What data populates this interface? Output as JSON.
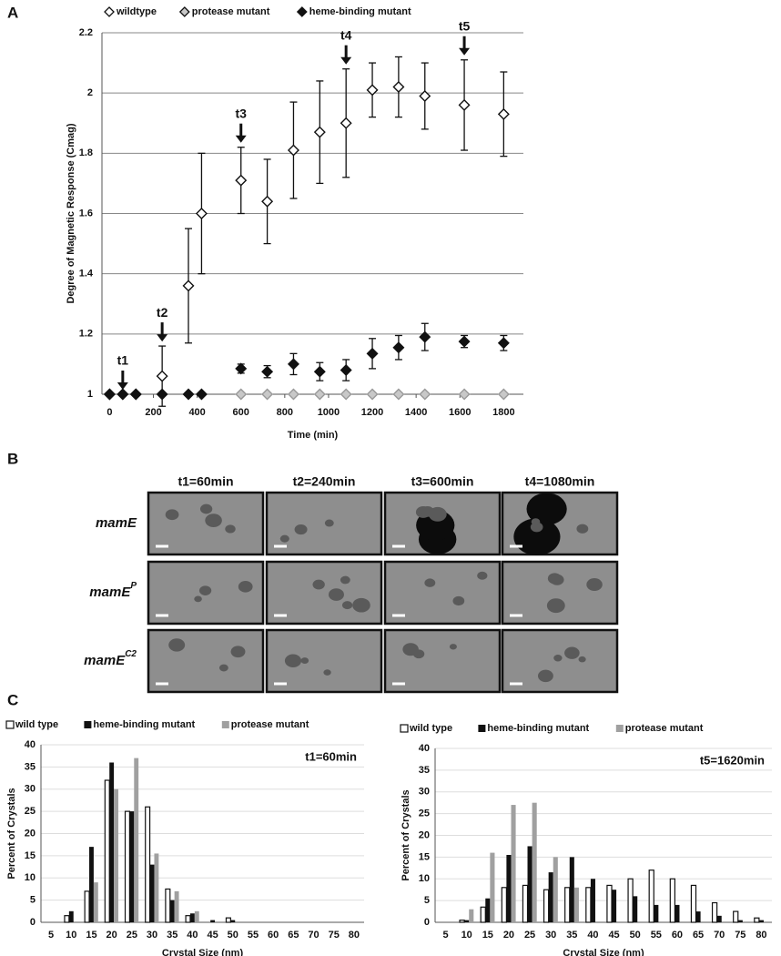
{
  "panel_b": {
    "label": "B",
    "columns": [
      "t1=60min",
      "t2=240min",
      "t3=600min",
      "t4=1080min"
    ],
    "rows": [
      {
        "name": "mamE"
      },
      {
        "name": "mamE",
        "superscript": "P"
      },
      {
        "name": "mamE",
        "superscript": "C2"
      }
    ]
  },
  "chart_data": [
    {
      "type": "scatter",
      "panel": "A",
      "xlabel": "Time (min)",
      "ylabel": "Degree of Magnetic Response (Cmag)",
      "xlim": [
        -35,
        1890
      ],
      "xticks": [
        0,
        200,
        400,
        600,
        800,
        1000,
        1200,
        1400,
        1600,
        1800
      ],
      "ylim": [
        1,
        2.2
      ],
      "yticks": [
        1,
        1.2,
        1.4,
        1.6,
        1.8,
        2,
        2.2
      ],
      "grid": true,
      "series": [
        {
          "name": "wildtype",
          "color": "#ffffff",
          "x": [
            0,
            60,
            120,
            240,
            360,
            420,
            600,
            720,
            840,
            960,
            1080,
            1200,
            1320,
            1440,
            1620,
            1800
          ],
          "values": [
            1,
            1,
            1,
            1.06,
            1.36,
            1.6,
            1.71,
            1.64,
            1.81,
            1.87,
            1.9,
            2.01,
            2.02,
            1.99,
            1.96,
            1.93
          ],
          "errors": [
            null,
            null,
            null,
            0.1,
            0.19,
            0.2,
            0.11,
            0.14,
            0.16,
            0.17,
            0.18,
            0.09,
            0.1,
            0.11,
            0.15,
            0.14
          ]
        },
        {
          "name": "protease mutant",
          "color": "#c8c8c8",
          "x": [
            600,
            720,
            840,
            960,
            1080,
            1200,
            1320,
            1440,
            1620,
            1800
          ],
          "values": [
            1,
            1,
            1,
            1,
            1,
            1,
            1,
            1,
            1,
            1
          ]
        },
        {
          "name": "heme-binding mutant",
          "color": "#111111",
          "x": [
            0,
            60,
            120,
            240,
            360,
            420,
            600,
            720,
            840,
            960,
            1080,
            1200,
            1320,
            1440,
            1620,
            1800
          ],
          "values": [
            1,
            1,
            1,
            1,
            1,
            1,
            1.085,
            1.075,
            1.1,
            1.075,
            1.08,
            1.135,
            1.155,
            1.19,
            1.175,
            1.17
          ],
          "errors": [
            null,
            null,
            null,
            null,
            null,
            null,
            0.015,
            0.02,
            0.035,
            0.03,
            0.035,
            0.05,
            0.04,
            0.045,
            0.02,
            0.025
          ]
        }
      ],
      "annotations": [
        {
          "text": "t1",
          "x": 60
        },
        {
          "text": "t2",
          "x": 240
        },
        {
          "text": "t3",
          "x": 600
        },
        {
          "text": "t4",
          "x": 1080
        },
        {
          "text": "t5",
          "x": 1620
        }
      ]
    },
    {
      "type": "bar",
      "panel": "C",
      "title": "t1=60min",
      "xlabel": "Crystal Size (nm)",
      "ylabel": "Percent of Crystals",
      "categories": [
        5,
        10,
        15,
        20,
        25,
        30,
        35,
        40,
        45,
        50,
        55,
        60,
        65,
        70,
        75,
        80
      ],
      "ylim": [
        0,
        40
      ],
      "yticks": [
        0,
        5,
        10,
        15,
        20,
        25,
        30,
        35,
        40
      ],
      "grid": true,
      "series": [
        {
          "name": "wild type",
          "color": "#ffffff",
          "values": [
            0,
            1.5,
            7,
            32,
            25,
            26,
            7.5,
            1.5,
            0,
            1,
            0,
            0,
            0,
            0,
            0,
            0
          ]
        },
        {
          "name": "heme-binding mutant",
          "color": "#111111",
          "values": [
            0,
            2.5,
            17,
            36,
            25,
            13,
            5,
            2,
            0.5,
            0.5,
            0,
            0,
            0,
            0,
            0,
            0
          ]
        },
        {
          "name": "protease mutant",
          "color": "#a0a0a0",
          "values": [
            0,
            0,
            9,
            30,
            37,
            15.5,
            7,
            2.5,
            0,
            0,
            0,
            0,
            0,
            0,
            0,
            0
          ]
        }
      ]
    },
    {
      "type": "bar",
      "title": "t5=1620min",
      "xlabel": "Crystal Size (nm)",
      "ylabel": "Percent of Crystals",
      "categories": [
        5,
        10,
        15,
        20,
        25,
        30,
        35,
        40,
        45,
        50,
        55,
        60,
        65,
        70,
        75,
        80
      ],
      "ylim": [
        0,
        40
      ],
      "yticks": [
        0,
        5,
        10,
        15,
        20,
        25,
        30,
        35,
        40
      ],
      "grid": true,
      "series": [
        {
          "name": "wild type",
          "color": "#ffffff",
          "values": [
            0,
            0.5,
            3.5,
            8,
            8.5,
            7.5,
            8,
            8,
            8.5,
            10,
            12,
            10,
            8.5,
            4.5,
            2.5,
            1
          ]
        },
        {
          "name": "heme-binding mutant",
          "color": "#111111",
          "values": [
            0,
            0.5,
            5.5,
            15.5,
            17.5,
            11.5,
            15,
            10,
            7.5,
            6,
            4,
            4,
            2.5,
            1.5,
            0.5,
            0.5
          ]
        },
        {
          "name": "protease mutant",
          "color": "#a0a0a0",
          "values": [
            0,
            3,
            16,
            27,
            27.5,
            15,
            8,
            0,
            0,
            0,
            0,
            0,
            0,
            0,
            0,
            0
          ]
        }
      ]
    }
  ]
}
